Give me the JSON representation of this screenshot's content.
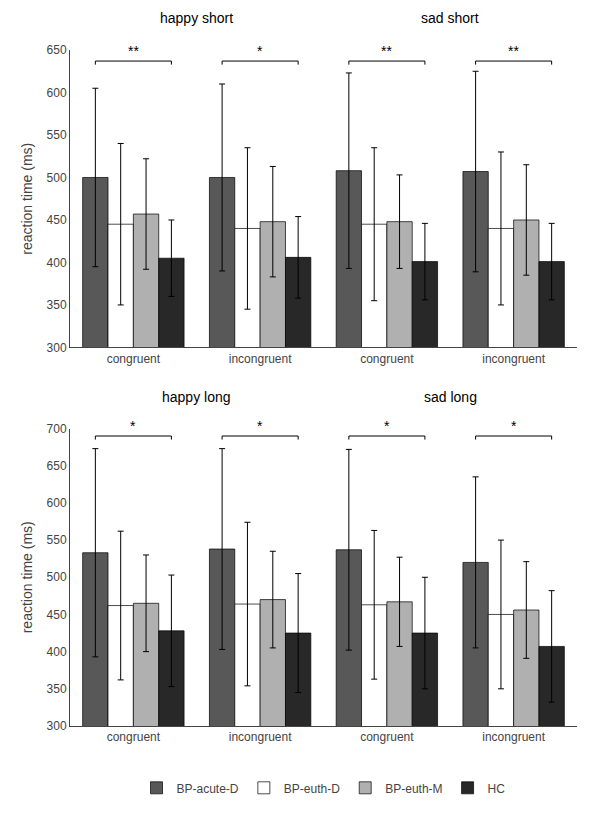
{
  "chart_data": [
    {
      "type": "bar",
      "categories": [
        "congruent",
        "incongruent",
        "congruent",
        "incongruent"
      ],
      "ylabel": "reaction time (ms)",
      "ylim": [
        300,
        650
      ],
      "yticks": [
        300,
        350,
        400,
        450,
        500,
        550,
        600,
        650
      ],
      "grid": false,
      "series": [
        {
          "name": "BP-acute-D",
          "color": "#585858",
          "values": [
            500,
            500,
            508,
            507
          ],
          "errors": [
            105,
            110,
            115,
            118
          ]
        },
        {
          "name": "BP-euth-D",
          "color": "#ffffff",
          "values": [
            445,
            440,
            445,
            440
          ],
          "errors": [
            95,
            95,
            90,
            90
          ]
        },
        {
          "name": "BP-euth-M",
          "color": "#b0b0b0",
          "values": [
            457,
            448,
            448,
            450
          ],
          "errors": [
            65,
            65,
            55,
            65
          ]
        },
        {
          "name": "HC",
          "color": "#282828",
          "values": [
            405,
            406,
            401,
            401
          ],
          "errors": [
            45,
            48,
            45,
            45
          ]
        }
      ],
      "annotations": [
        {
          "text": "happy short",
          "categories": [
            0,
            1
          ]
        },
        {
          "text": "sad short",
          "categories": [
            2,
            3
          ]
        },
        {
          "text": "**",
          "category": 0,
          "y": 637
        },
        {
          "text": "*",
          "category": 1,
          "y": 637
        },
        {
          "text": "**",
          "category": 2,
          "y": 637
        },
        {
          "text": "**",
          "category": 3,
          "y": 637
        }
      ]
    },
    {
      "type": "bar",
      "categories": [
        "congruent",
        "incongruent",
        "congruent",
        "incongruent"
      ],
      "ylabel": "reaction time (ms)",
      "ylim": [
        300,
        700
      ],
      "yticks": [
        300,
        350,
        400,
        450,
        500,
        550,
        600,
        650,
        700
      ],
      "grid": false,
      "legend": "bottom",
      "series": [
        {
          "name": "BP-acute-D",
          "color": "#585858",
          "values": [
            533,
            538,
            537,
            520
          ],
          "errors": [
            140,
            135,
            135,
            115
          ]
        },
        {
          "name": "BP-euth-D",
          "color": "#ffffff",
          "values": [
            462,
            464,
            463,
            450
          ],
          "errors": [
            100,
            110,
            100,
            100
          ]
        },
        {
          "name": "BP-euth-M",
          "color": "#b0b0b0",
          "values": [
            465,
            470,
            467,
            456
          ],
          "errors": [
            65,
            65,
            60,
            65
          ]
        },
        {
          "name": "HC",
          "color": "#282828",
          "values": [
            428,
            425,
            425,
            407
          ],
          "errors": [
            75,
            80,
            75,
            75
          ]
        }
      ],
      "annotations": [
        {
          "text": "happy long",
          "categories": [
            0,
            1
          ]
        },
        {
          "text": "sad long",
          "categories": [
            2,
            3
          ]
        },
        {
          "text": "*",
          "category": 0,
          "y": 690
        },
        {
          "text": "*",
          "category": 1,
          "y": 690
        },
        {
          "text": "*",
          "category": 2,
          "y": 690
        },
        {
          "text": "*",
          "category": 3,
          "y": 690
        }
      ]
    }
  ]
}
